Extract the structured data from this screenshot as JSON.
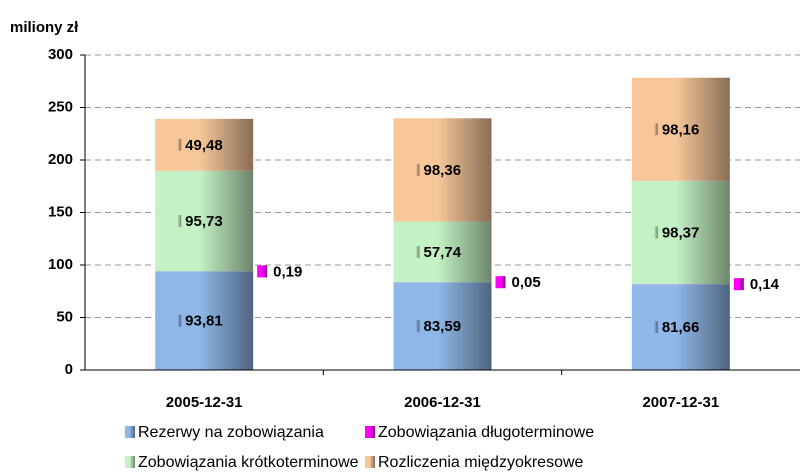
{
  "chart_data": {
    "type": "stacked_bar",
    "y_axis_label": "miliony zł",
    "categories": [
      "2005-12-31",
      "2006-12-31",
      "2007-12-31"
    ],
    "series": [
      {
        "name": "Rezerwy na zobowiązania",
        "color": "#8fb8e8",
        "values": [
          93.81,
          83.59,
          81.66
        ],
        "value_labels": [
          "93,81",
          "83,59",
          "81,66"
        ]
      },
      {
        "name": "Zobowiązania długoterminowe",
        "color": "#ff00ff",
        "values": [
          0.19,
          0.05,
          0.14
        ],
        "value_labels": [
          "0,19",
          "0,05",
          "0,14"
        ]
      },
      {
        "name": "Zobowiązania krótkoterminowe",
        "color": "#c4f2c4",
        "values": [
          95.73,
          57.74,
          98.37
        ],
        "value_labels": [
          "95,73",
          "57,74",
          "98,37"
        ]
      },
      {
        "name": "Rozliczenia międzyokresowe",
        "color": "#f7c79a",
        "values": [
          49.48,
          98.36,
          98.16
        ],
        "value_labels": [
          "49,48",
          "98,36",
          "98,16"
        ]
      }
    ],
    "ylim": [
      0,
      300
    ],
    "yticks": [
      0,
      50,
      100,
      150,
      200,
      250,
      300
    ],
    "grid": true
  }
}
